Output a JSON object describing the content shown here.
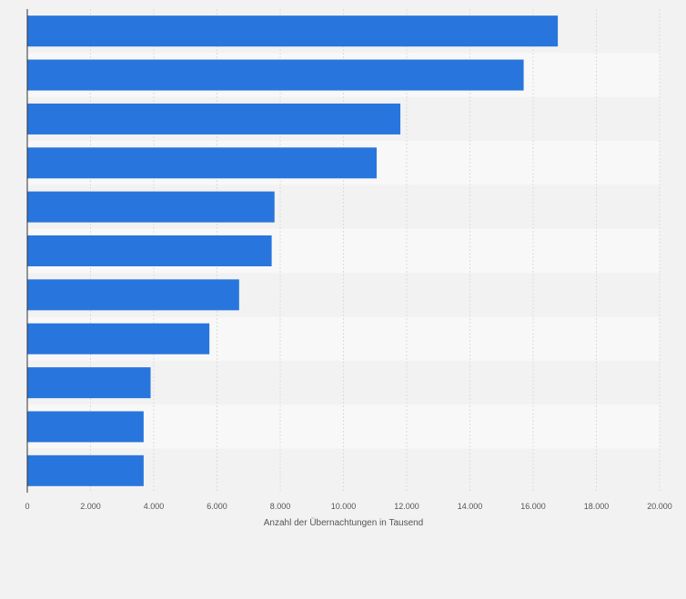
{
  "chart_data": {
    "type": "bar",
    "orientation": "horizontal",
    "title": "",
    "xlabel": "Anzahl der Übernachtungen in Tausend",
    "ylabel": "",
    "categories": [
      "",
      "",
      "",
      "",
      "",
      "",
      "",
      "",
      "",
      "",
      ""
    ],
    "values": [
      16780,
      15700,
      11800,
      11050,
      7820,
      7730,
      6700,
      5760,
      3900,
      3680,
      3680
    ],
    "xlim": [
      0,
      20000
    ],
    "xticks": [
      0,
      2000,
      4000,
      6000,
      8000,
      10000,
      12000,
      14000,
      16000,
      18000,
      20000
    ],
    "xtick_labels": [
      "0",
      "2.000",
      "4.000",
      "6.000",
      "8.000",
      "10.000",
      "12.000",
      "14.000",
      "16.000",
      "18.000",
      "20.000"
    ],
    "grid": true,
    "colors": {
      "bar": "#2876dd",
      "band_dark": "#f2f2f2",
      "band_light": "#f8f8f8",
      "gridline": "#dcdcdc",
      "axis": "#333333",
      "background": "#f2f2f2"
    }
  }
}
